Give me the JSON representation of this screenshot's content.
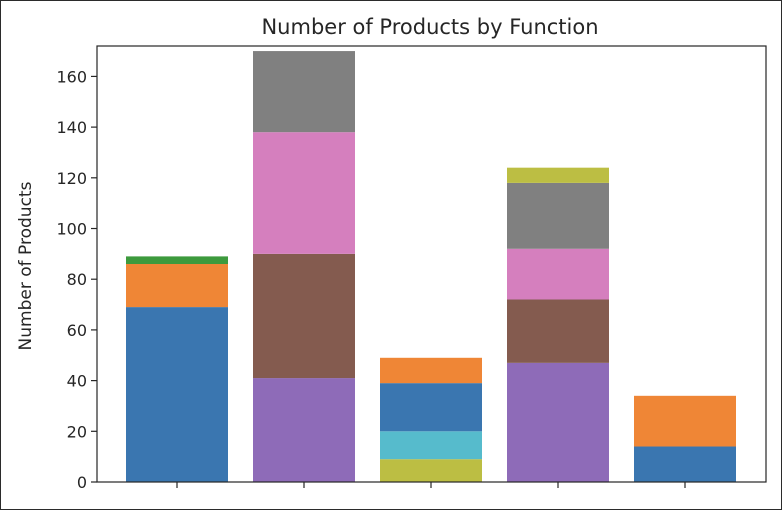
{
  "chart_data": {
    "type": "bar",
    "stacked": true,
    "title": "Number of Products by Function",
    "xlabel": "",
    "ylabel": "Number of Products",
    "ylim": [
      0,
      172
    ],
    "yticks": [
      0,
      20,
      40,
      60,
      80,
      100,
      120,
      140,
      160
    ],
    "grid": false,
    "legend": "none",
    "categories": [
      "",
      "",
      "",
      "",
      ""
    ],
    "stacks": [
      [
        {
          "value": 69,
          "color": "#3a76b0"
        },
        {
          "value": 17,
          "color": "#ef8636"
        },
        {
          "value": 3,
          "color": "#3d9a3d"
        }
      ],
      [
        {
          "value": 41,
          "color": "#8e6bb8"
        },
        {
          "value": 49,
          "color": "#845b4f"
        },
        {
          "value": 48,
          "color": "#d57fbe"
        },
        {
          "value": 32,
          "color": "#808080"
        }
      ],
      [
        {
          "value": 9,
          "color": "#bcbe43"
        },
        {
          "value": 11,
          "color": "#56bbcc"
        },
        {
          "value": 19,
          "color": "#3a76b0"
        },
        {
          "value": 10,
          "color": "#ef8636"
        }
      ],
      [
        {
          "value": 47,
          "color": "#8e6bb8"
        },
        {
          "value": 25,
          "color": "#845b4f"
        },
        {
          "value": 20,
          "color": "#d57fbe"
        },
        {
          "value": 26,
          "color": "#808080"
        },
        {
          "value": 6,
          "color": "#bcbe43"
        }
      ],
      [
        {
          "value": 14,
          "color": "#3a76b0"
        },
        {
          "value": 20,
          "color": "#ef8636"
        }
      ]
    ]
  }
}
